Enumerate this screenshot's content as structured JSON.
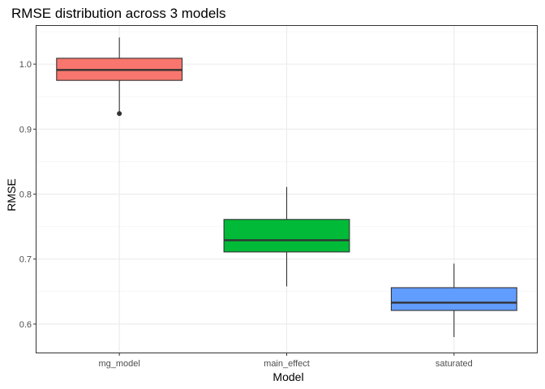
{
  "chart_data": {
    "type": "boxplot",
    "title": "RMSE distribution across 3 models",
    "xlabel": "Model",
    "ylabel": "RMSE",
    "ylim": [
      0.555,
      1.06
    ],
    "yticks": [
      "0.6",
      "0.7",
      "0.8",
      "0.9",
      "1.0"
    ],
    "grid": true,
    "legend": "none",
    "series": [
      {
        "category": "mg_model",
        "color": "#F8766D",
        "whisker_low": 0.924,
        "q1": 0.975,
        "median": 0.991,
        "q3": 1.009,
        "whisker_high": 1.041,
        "outliers": [
          0.924
        ]
      },
      {
        "category": "main_effect",
        "color": "#00BA38",
        "whisker_low": 0.658,
        "q1": 0.711,
        "median": 0.729,
        "q3": 0.761,
        "whisker_high": 0.811,
        "outliers": []
      },
      {
        "category": "saturated",
        "color": "#619CFF",
        "whisker_low": 0.58,
        "q1": 0.621,
        "median": 0.633,
        "q3": 0.656,
        "whisker_high": 0.693,
        "outliers": []
      }
    ]
  }
}
